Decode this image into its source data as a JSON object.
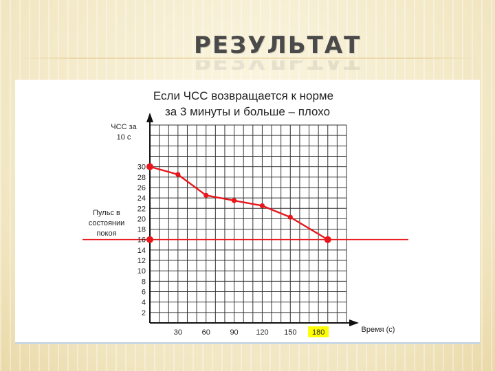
{
  "slide": {
    "title": "РЕЗУЛЬТАТ"
  },
  "chart_data": {
    "type": "line",
    "title_line1": "Если ЧСС возвращается к норме",
    "title_line2": "за 3 минуты и больше – плохо",
    "ylabel_line1": "ЧСС за",
    "ylabel_line2": "10 с",
    "xlabel": "Время (с)",
    "y_ticks": [
      2,
      4,
      6,
      8,
      10,
      12,
      14,
      16,
      18,
      20,
      22,
      24,
      26,
      28,
      30
    ],
    "x_ticks": [
      30,
      60,
      90,
      120,
      150,
      180
    ],
    "highlighted_x_tick": 180,
    "highlight_color": "#ffff00",
    "ylim": [
      0,
      38
    ],
    "xlim": [
      0,
      210
    ],
    "grid": true,
    "series": [
      {
        "color": "#e8161b",
        "x": [
          0,
          30,
          60,
          90,
          120,
          150,
          190
        ],
        "y": [
          30,
          28.5,
          24.5,
          23.5,
          22.5,
          20.3,
          16
        ]
      }
    ],
    "reference_line": {
      "label_line1": "Пульс в",
      "label_line2": "состоянии",
      "label_line3": "покоя",
      "y": 16,
      "color": "#e8161b"
    },
    "axis_color": "#111111"
  }
}
